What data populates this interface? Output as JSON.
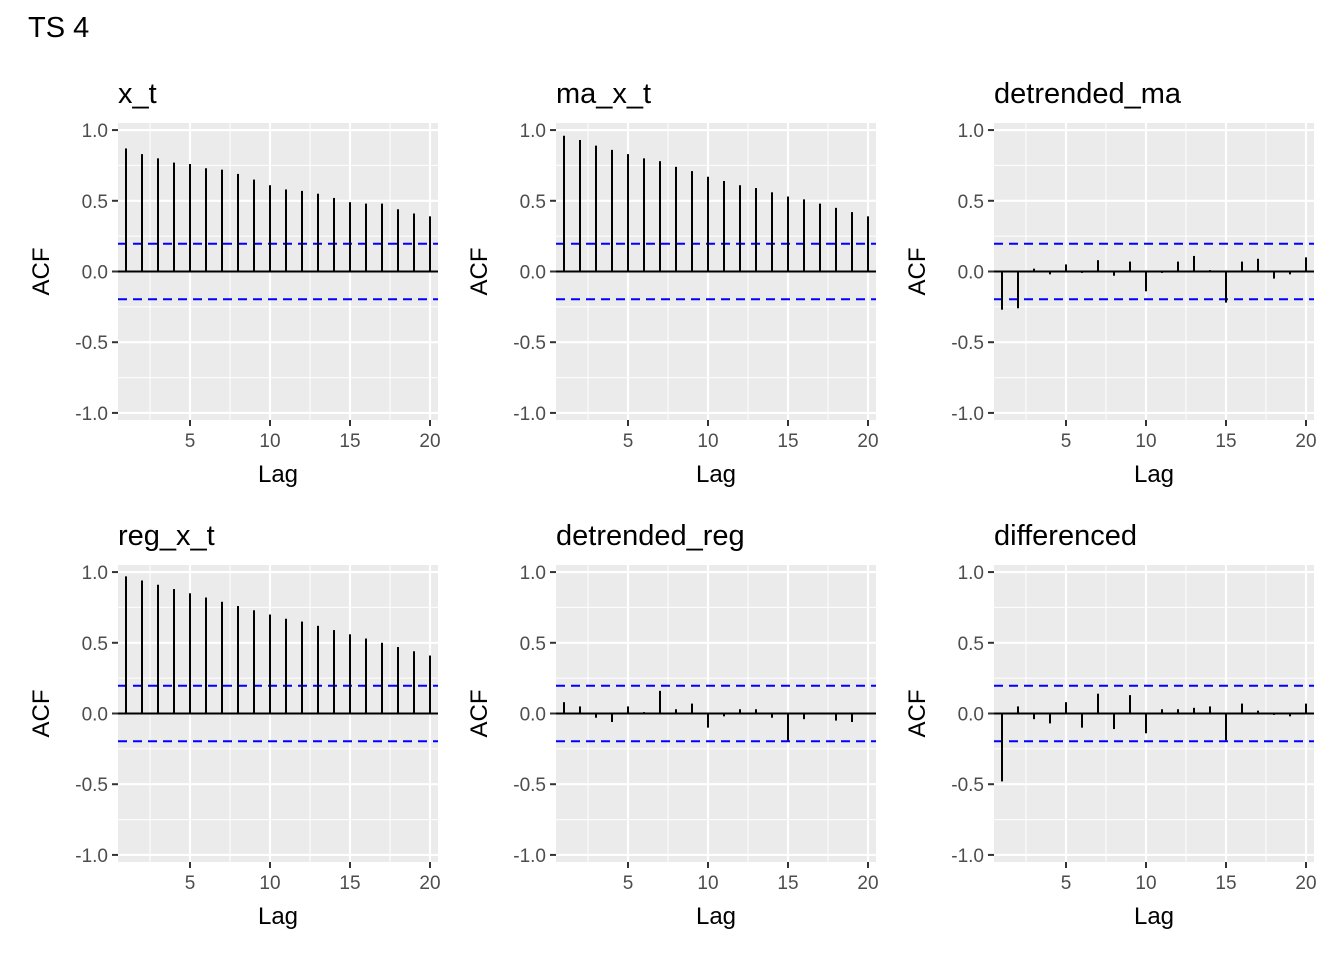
{
  "page_title": "TS 4",
  "chart_data": [
    {
      "type": "bar",
      "title": "x_t",
      "xlabel": "Lag",
      "ylabel": "ACF",
      "x": [
        1,
        2,
        3,
        4,
        5,
        6,
        7,
        8,
        9,
        10,
        11,
        12,
        13,
        14,
        15,
        16,
        17,
        18,
        19,
        20
      ],
      "values": [
        0.87,
        0.83,
        0.8,
        0.77,
        0.76,
        0.73,
        0.72,
        0.69,
        0.65,
        0.61,
        0.58,
        0.57,
        0.55,
        0.52,
        0.49,
        0.48,
        0.48,
        0.44,
        0.41,
        0.39
      ],
      "ci": 0.196,
      "xlim": [
        0.5,
        20.5
      ],
      "ylim": [
        -1.05,
        1.05
      ],
      "xticks": [
        "5",
        "10",
        "15",
        "20"
      ],
      "yticks": [
        "1.0",
        "0.5",
        "0.0",
        "-0.5",
        "-1.0"
      ],
      "ci_color": "#0000FF"
    },
    {
      "type": "bar",
      "title": "ma_x_t",
      "xlabel": "Lag",
      "ylabel": "ACF",
      "x": [
        1,
        2,
        3,
        4,
        5,
        6,
        7,
        8,
        9,
        10,
        11,
        12,
        13,
        14,
        15,
        16,
        17,
        18,
        19,
        20
      ],
      "values": [
        0.96,
        0.93,
        0.89,
        0.86,
        0.83,
        0.8,
        0.78,
        0.74,
        0.71,
        0.67,
        0.64,
        0.61,
        0.59,
        0.56,
        0.53,
        0.51,
        0.48,
        0.45,
        0.42,
        0.39
      ],
      "ci": 0.196,
      "xlim": [
        0.5,
        20.5
      ],
      "ylim": [
        -1.05,
        1.05
      ],
      "xticks": [
        "5",
        "10",
        "15",
        "20"
      ],
      "yticks": [
        "1.0",
        "0.5",
        "0.0",
        "-0.5",
        "-1.0"
      ],
      "ci_color": "#0000FF"
    },
    {
      "type": "bar",
      "title": "detrended_ma",
      "xlabel": "Lag",
      "ylabel": "ACF",
      "x": [
        1,
        2,
        3,
        4,
        5,
        6,
        7,
        8,
        9,
        10,
        11,
        12,
        13,
        14,
        15,
        16,
        17,
        18,
        19,
        20
      ],
      "values": [
        -0.27,
        -0.26,
        0.02,
        -0.02,
        0.05,
        -0.01,
        0.08,
        -0.03,
        0.07,
        -0.14,
        -0.01,
        0.07,
        0.11,
        0.01,
        -0.22,
        0.07,
        0.09,
        -0.05,
        -0.02,
        0.1
      ],
      "ci": 0.196,
      "xlim": [
        0.5,
        20.5
      ],
      "ylim": [
        -1.05,
        1.05
      ],
      "xticks": [
        "5",
        "10",
        "15",
        "20"
      ],
      "yticks": [
        "1.0",
        "0.5",
        "0.0",
        "-0.5",
        "-1.0"
      ],
      "ci_color": "#0000FF"
    },
    {
      "type": "bar",
      "title": "reg_x_t",
      "xlabel": "Lag",
      "ylabel": "ACF",
      "x": [
        1,
        2,
        3,
        4,
        5,
        6,
        7,
        8,
        9,
        10,
        11,
        12,
        13,
        14,
        15,
        16,
        17,
        18,
        19,
        20
      ],
      "values": [
        0.97,
        0.94,
        0.91,
        0.88,
        0.85,
        0.82,
        0.79,
        0.76,
        0.73,
        0.7,
        0.67,
        0.65,
        0.62,
        0.59,
        0.56,
        0.53,
        0.5,
        0.47,
        0.44,
        0.41
      ],
      "ci": 0.196,
      "xlim": [
        0.5,
        20.5
      ],
      "ylim": [
        -1.05,
        1.05
      ],
      "xticks": [
        "5",
        "10",
        "15",
        "20"
      ],
      "yticks": [
        "1.0",
        "0.5",
        "0.0",
        "-0.5",
        "-1.0"
      ],
      "ci_color": "#0000FF"
    },
    {
      "type": "bar",
      "title": "detrended_reg",
      "xlabel": "Lag",
      "ylabel": "ACF",
      "x": [
        1,
        2,
        3,
        4,
        5,
        6,
        7,
        8,
        9,
        10,
        11,
        12,
        13,
        14,
        15,
        16,
        17,
        18,
        19,
        20
      ],
      "values": [
        0.08,
        0.05,
        -0.03,
        -0.06,
        0.05,
        0.01,
        0.16,
        0.03,
        0.07,
        -0.1,
        -0.02,
        0.03,
        0.03,
        -0.03,
        -0.19,
        -0.04,
        0.0,
        -0.05,
        -0.06,
        0.0
      ],
      "ci": 0.196,
      "xlim": [
        0.5,
        20.5
      ],
      "ylim": [
        -1.05,
        1.05
      ],
      "xticks": [
        "5",
        "10",
        "15",
        "20"
      ],
      "yticks": [
        "1.0",
        "0.5",
        "0.0",
        "-0.5",
        "-1.0"
      ],
      "ci_color": "#0000FF"
    },
    {
      "type": "bar",
      "title": "differenced",
      "xlabel": "Lag",
      "ylabel": "ACF",
      "x": [
        1,
        2,
        3,
        4,
        5,
        6,
        7,
        8,
        9,
        10,
        11,
        12,
        13,
        14,
        15,
        16,
        17,
        18,
        19,
        20
      ],
      "values": [
        -0.48,
        0.05,
        -0.04,
        -0.07,
        0.08,
        -0.1,
        0.14,
        -0.11,
        0.13,
        -0.14,
        0.03,
        0.03,
        0.04,
        0.05,
        -0.19,
        0.07,
        0.02,
        -0.01,
        -0.02,
        0.07
      ],
      "ci": 0.196,
      "xlim": [
        0.5,
        20.5
      ],
      "ylim": [
        -1.05,
        1.05
      ],
      "xticks": [
        "5",
        "10",
        "15",
        "20"
      ],
      "yticks": [
        "1.0",
        "0.5",
        "0.0",
        "-0.5",
        "-1.0"
      ],
      "ci_color": "#0000FF"
    }
  ]
}
